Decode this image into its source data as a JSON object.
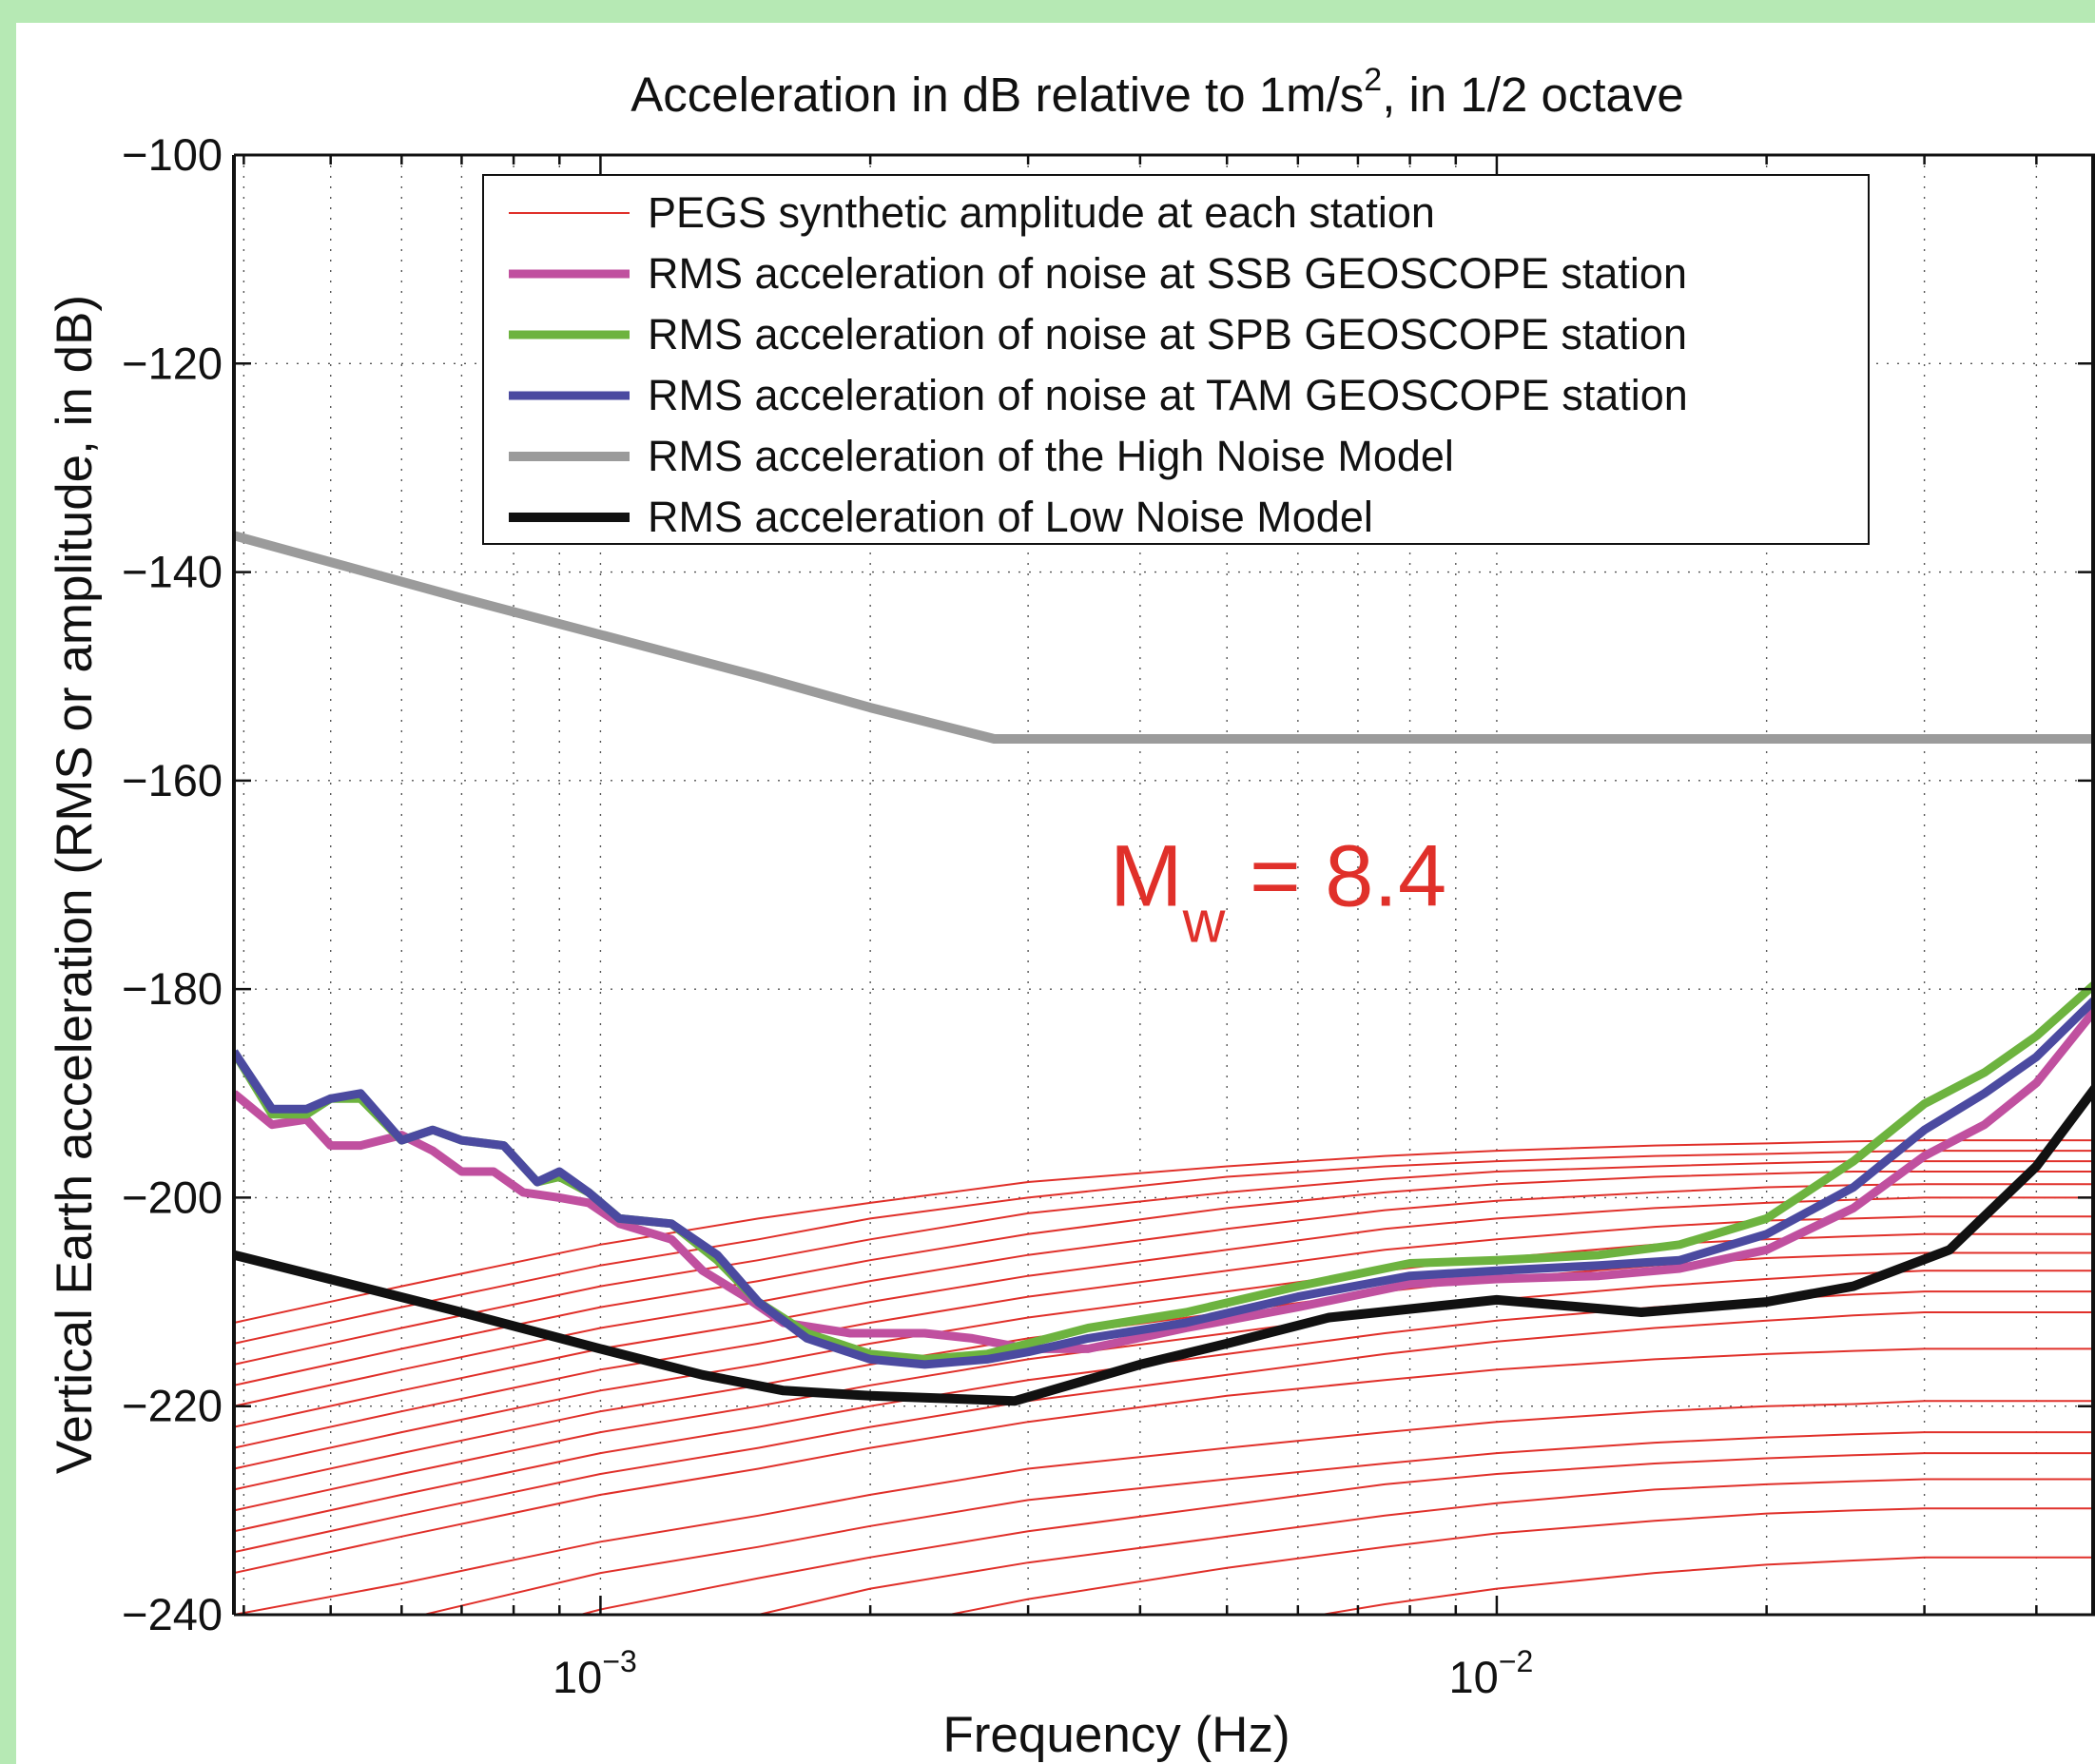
{
  "chart_data": {
    "type": "line",
    "title": "Acceleration in dB relative to 1m/s², in 1/2 octave",
    "title_parts": {
      "before": "Acceleration in dB relative to 1m/s",
      "sup": "2",
      "after": ", in 1/2 octave"
    },
    "xlabel": "Frequency (Hz)",
    "ylabel": "Vertical Earth acceleration (RMS or amplitude, in dB)",
    "x_scale": "log",
    "xlim": [
      0.00039,
      0.0465
    ],
    "ylim": [
      -240,
      -100
    ],
    "grid": true,
    "legend_position": "top-center",
    "x_tick_labels": [
      {
        "value": 0.001,
        "base": "10",
        "exp": "−3"
      },
      {
        "value": 0.01,
        "base": "10",
        "exp": "−2"
      }
    ],
    "y_ticks": [
      -100,
      -120,
      -140,
      -160,
      -180,
      -200,
      -220,
      -240
    ],
    "y_tick_labels": [
      "−100",
      "−120",
      "−140",
      "−160",
      "−180",
      "−200",
      "−220",
      "−240"
    ],
    "annotation": {
      "main": "M",
      "sub": "w",
      "rest": " = 8.4",
      "x": 0.0037,
      "y": -172,
      "color": "#e0302a"
    },
    "series": [
      {
        "name": "RMS acceleration of the High Noise Model",
        "color": "#9b9b9b",
        "width": 10,
        "x": [
          0.00039,
          0.0007,
          0.001,
          0.0015,
          0.002,
          0.00275,
          0.005,
          0.01,
          0.02,
          0.0465
        ],
        "y": [
          -136.5,
          -142.5,
          -146,
          -150,
          -153,
          -156,
          -156,
          -156,
          -156,
          -156
        ]
      },
      {
        "name": "RMS acceleration of Low Noise Model",
        "color": "#111111",
        "width": 10,
        "x": [
          0.00039,
          0.0007,
          0.001,
          0.0013,
          0.0016,
          0.002,
          0.0029,
          0.004,
          0.005,
          0.0065,
          0.01,
          0.0145,
          0.02,
          0.025,
          0.032,
          0.04,
          0.0465
        ],
        "y": [
          -205.5,
          -211,
          -214.5,
          -217,
          -218.5,
          -219,
          -219.5,
          -216,
          -214,
          -211.5,
          -209.8,
          -211,
          -210,
          -208.5,
          -205,
          -197,
          -189.5
        ]
      },
      {
        "name": "RMS acceleration of noise at SSB GEOSCOPE station",
        "color": "#c0509f",
        "width": 9,
        "x": [
          0.00039,
          0.00043,
          0.00047,
          0.0005,
          0.00054,
          0.0006,
          0.00065,
          0.0007,
          0.00076,
          0.00082,
          0.0009,
          0.00097,
          0.00105,
          0.0012,
          0.0013,
          0.00145,
          0.0016,
          0.0019,
          0.0023,
          0.0026,
          0.003,
          0.0035,
          0.0045,
          0.006,
          0.008,
          0.01,
          0.013,
          0.016,
          0.02,
          0.025,
          0.03,
          0.035,
          0.04,
          0.0465
        ],
        "y": [
          -190,
          -193,
          -192.5,
          -195,
          -195,
          -194,
          -195.5,
          -197.5,
          -197.5,
          -199.5,
          -200,
          -200.5,
          -202.5,
          -204,
          -207,
          -209.5,
          -212,
          -213,
          -213,
          -213.5,
          -214.5,
          -214.5,
          -212.5,
          -210.5,
          -208.3,
          -207.8,
          -207.5,
          -206.8,
          -205,
          -201,
          -196,
          -193,
          -189,
          -182
        ]
      },
      {
        "name": "RMS acceleration of noise at SPB GEOSCOPE station",
        "color": "#6db33f",
        "width": 9,
        "x": [
          0.00039,
          0.00043,
          0.00047,
          0.0005,
          0.00054,
          0.0006,
          0.00065,
          0.0007,
          0.00078,
          0.00085,
          0.0009,
          0.00097,
          0.00105,
          0.0012,
          0.00135,
          0.0015,
          0.0017,
          0.002,
          0.0023,
          0.0027,
          0.003,
          0.0035,
          0.0045,
          0.006,
          0.008,
          0.01,
          0.013,
          0.016,
          0.02,
          0.025,
          0.03,
          0.035,
          0.04,
          0.0465
        ],
        "y": [
          -186,
          -192,
          -192,
          -190.5,
          -190.5,
          -194.5,
          -193.5,
          -194.5,
          -195,
          -198.5,
          -198,
          -199.5,
          -202,
          -202.5,
          -206,
          -210,
          -213,
          -215,
          -215.5,
          -215,
          -214,
          -212.5,
          -211,
          -208.5,
          -206.3,
          -206,
          -205.5,
          -204.5,
          -202,
          -196.5,
          -191,
          -188,
          -184.5,
          -179.5
        ]
      },
      {
        "name": "RMS acceleration of noise at TAM GEOSCOPE station",
        "color": "#4b4aa0",
        "width": 9,
        "x": [
          0.00039,
          0.00043,
          0.00047,
          0.0005,
          0.00054,
          0.0006,
          0.00065,
          0.0007,
          0.00078,
          0.00085,
          0.0009,
          0.00097,
          0.00105,
          0.0012,
          0.00135,
          0.0015,
          0.0017,
          0.002,
          0.0023,
          0.0027,
          0.003,
          0.0035,
          0.0045,
          0.006,
          0.008,
          0.01,
          0.013,
          0.016,
          0.02,
          0.025,
          0.03,
          0.035,
          0.04,
          0.0465
        ],
        "y": [
          -186,
          -191.5,
          -191.5,
          -190.5,
          -190,
          -194.5,
          -193.5,
          -194.5,
          -195,
          -198.5,
          -197.5,
          -199.5,
          -202,
          -202.5,
          -205.5,
          -210,
          -213.5,
          -215.5,
          -216,
          -215.5,
          -214.8,
          -213.5,
          -212,
          -209.5,
          -207.5,
          -207,
          -206.5,
          -206,
          -203.5,
          -199,
          -193.5,
          -190,
          -186.5,
          -181
        ]
      }
    ],
    "legend": [
      {
        "label": "PEGS synthetic amplitude at each station",
        "color": "#e0302a",
        "width": 2
      },
      {
        "label": "RMS acceleration of noise at SSB GEOSCOPE station",
        "color": "#c0509f",
        "width": 9
      },
      {
        "label": "RMS acceleration of noise at SPB GEOSCOPE station",
        "color": "#6db33f",
        "width": 9
      },
      {
        "label": "RMS acceleration of noise at TAM GEOSCOPE station",
        "color": "#4b4aa0",
        "width": 9
      },
      {
        "label": "RMS acceleration of the High Noise Model",
        "color": "#9b9b9b",
        "width": 10
      },
      {
        "label": "RMS acceleration of Low Noise Model",
        "color": "#111111",
        "width": 10
      }
    ],
    "synthetic_station_curves": {
      "name": "PEGS synthetic amplitude at each station",
      "color": "#e0302a",
      "width": 2,
      "x": [
        0.00039,
        0.0006,
        0.001,
        0.0015,
        0.002,
        0.003,
        0.005,
        0.0075,
        0.01,
        0.015,
        0.02,
        0.025,
        0.03,
        0.04,
        0.0465
      ],
      "curves": [
        [
          -212,
          -208.5,
          -204.5,
          -202,
          -200.5,
          -198.5,
          -197,
          -196,
          -195.5,
          -195,
          -194.8,
          -194.6,
          -194.5,
          -194.5,
          -194.5
        ],
        [
          -214,
          -210.5,
          -206.5,
          -204,
          -202,
          -200,
          -198,
          -197,
          -196.5,
          -196,
          -195.8,
          -195.6,
          -195.5,
          -195.5,
          -195.5
        ],
        [
          -216,
          -212.5,
          -208.5,
          -206,
          -204,
          -201.5,
          -199.5,
          -198.2,
          -197.5,
          -197,
          -196.7,
          -196.5,
          -196.5,
          -196.5,
          -196.5
        ],
        [
          -218,
          -214.5,
          -210.5,
          -208,
          -206,
          -203.5,
          -201,
          -199.5,
          -198.7,
          -198,
          -197.7,
          -197.5,
          -197.5,
          -197.5,
          -197.5
        ],
        [
          -220,
          -216.5,
          -212.5,
          -210,
          -208,
          -205.5,
          -203,
          -201.2,
          -200.3,
          -199.5,
          -199,
          -198.8,
          -198.7,
          -198.7,
          -198.7
        ],
        [
          -222,
          -218.5,
          -214.5,
          -212,
          -210,
          -207.5,
          -205,
          -203,
          -202,
          -201,
          -200.5,
          -200.2,
          -200,
          -200,
          -200
        ],
        [
          -224,
          -220.5,
          -216.5,
          -214,
          -212,
          -209.5,
          -207,
          -205,
          -204,
          -202.8,
          -202.2,
          -202,
          -201.8,
          -201.8,
          -201.8
        ],
        [
          -226,
          -222.5,
          -218.5,
          -216,
          -214,
          -211.5,
          -209,
          -207,
          -205.8,
          -204.5,
          -204,
          -203.7,
          -203.5,
          -203.5,
          -203.5
        ],
        [
          -228,
          -224.5,
          -220.5,
          -218,
          -216,
          -213.5,
          -211,
          -209,
          -207.8,
          -206.5,
          -205.8,
          -205.5,
          -205.3,
          -205.3,
          -205.3
        ],
        [
          -230,
          -226.5,
          -222.5,
          -220,
          -218,
          -215.5,
          -213,
          -211,
          -209.8,
          -208.5,
          -207.8,
          -207.3,
          -207,
          -207,
          -207
        ],
        [
          -232,
          -228.5,
          -224.5,
          -222,
          -220,
          -217.5,
          -215,
          -213,
          -211.8,
          -210.5,
          -209.8,
          -209.3,
          -209,
          -209,
          -209
        ],
        [
          -234,
          -230.5,
          -226.5,
          -224,
          -222,
          -219.5,
          -217,
          -215,
          -213.8,
          -212.5,
          -211.8,
          -211.3,
          -211,
          -211,
          -211
        ],
        [
          -236,
          -232.5,
          -228.5,
          -226,
          -224,
          -221.5,
          -219,
          -217.5,
          -216.5,
          -215.5,
          -215,
          -214.7,
          -214.5,
          -214.5,
          -214.5
        ],
        [
          -240,
          -237,
          -233,
          -230.5,
          -228.5,
          -226,
          -224,
          -222.5,
          -221.5,
          -220.5,
          -220,
          -219.8,
          -219.5,
          -219.5,
          -219.5
        ],
        [
          -244,
          -240.5,
          -236,
          -233.5,
          -231.5,
          -229,
          -227,
          -225.5,
          -224.5,
          -223.5,
          -223,
          -222.7,
          -222.5,
          -222.5,
          -222.5
        ],
        [
          -248,
          -244.5,
          -239.5,
          -236.5,
          -234.5,
          -232,
          -229.5,
          -227.5,
          -226.5,
          -225.5,
          -225,
          -224.7,
          -224.5,
          -224.5,
          -224.5
        ],
        [
          -252,
          -248,
          -243,
          -240,
          -237.5,
          -235,
          -232.5,
          -230.5,
          -229.3,
          -228,
          -227.5,
          -227.2,
          -227,
          -227,
          -227
        ],
        [
          -256,
          -252,
          -247,
          -244,
          -241.5,
          -238.5,
          -235.5,
          -233.5,
          -232.2,
          -231,
          -230.3,
          -230,
          -229.8,
          -229.8,
          -229.8
        ],
        [
          -262,
          -258,
          -253,
          -250,
          -247.5,
          -244.5,
          -241.5,
          -239,
          -237.5,
          -236,
          -235.2,
          -234.8,
          -234.5,
          -234.5,
          -234.5
        ]
      ]
    }
  }
}
